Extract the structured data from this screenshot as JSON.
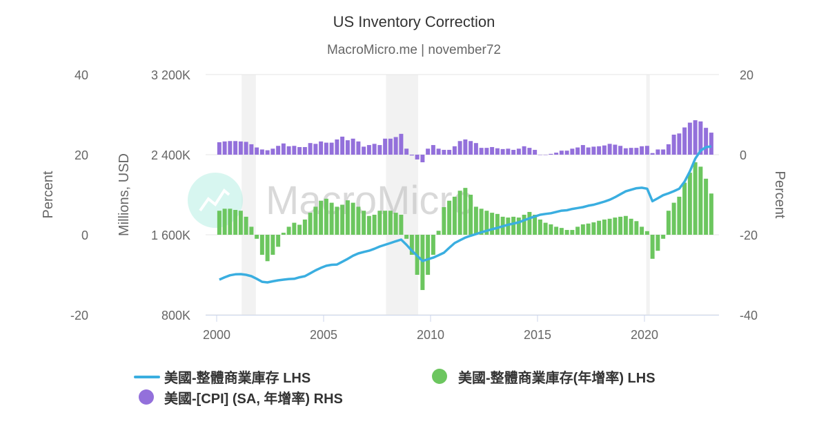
{
  "chart_data": {
    "type": "bar+line",
    "title": "US Inventory Correction",
    "subtitle": "MacroMicro.me | november72",
    "watermark": "MacroMicro",
    "x_ticks": [
      "2000",
      "2005",
      "2010",
      "2015",
      "2020"
    ],
    "y_axes": {
      "left_percent": {
        "label": "Percent",
        "ticks": [
          "40",
          "20",
          "0",
          "-20"
        ],
        "range": [
          -20,
          40
        ]
      },
      "left_usd": {
        "label": "Millions, USD",
        "ticks": [
          "3 200K",
          "2 400K",
          "1 600K",
          "800K"
        ],
        "range": [
          800,
          3200
        ]
      },
      "right_percent": {
        "label": "Percent",
        "ticks": [
          "20",
          "0",
          "-20",
          "-40"
        ],
        "range": [
          -40,
          20
        ]
      }
    },
    "grid": true,
    "legend_position": "bottom",
    "recessions": [
      [
        "2001-03",
        "2001-11"
      ],
      [
        "2007-12",
        "2009-06"
      ],
      [
        "2020-02",
        "2020-04"
      ]
    ],
    "dates": [
      "2000Q1",
      "2000Q2",
      "2000Q3",
      "2000Q4",
      "2001Q1",
      "2001Q2",
      "2001Q3",
      "2001Q4",
      "2002Q1",
      "2002Q2",
      "2002Q3",
      "2002Q4",
      "2003Q1",
      "2003Q2",
      "2003Q3",
      "2003Q4",
      "2004Q1",
      "2004Q2",
      "2004Q3",
      "2004Q4",
      "2005Q1",
      "2005Q2",
      "2005Q3",
      "2005Q4",
      "2006Q1",
      "2006Q2",
      "2006Q3",
      "2006Q4",
      "2007Q1",
      "2007Q2",
      "2007Q3",
      "2007Q4",
      "2008Q1",
      "2008Q2",
      "2008Q3",
      "2008Q4",
      "2009Q1",
      "2009Q2",
      "2009Q3",
      "2009Q4",
      "2010Q1",
      "2010Q2",
      "2010Q3",
      "2010Q4",
      "2011Q1",
      "2011Q2",
      "2011Q3",
      "2011Q4",
      "2012Q1",
      "2012Q2",
      "2012Q3",
      "2012Q4",
      "2013Q1",
      "2013Q2",
      "2013Q3",
      "2013Q4",
      "2014Q1",
      "2014Q2",
      "2014Q3",
      "2014Q4",
      "2015Q1",
      "2015Q2",
      "2015Q3",
      "2015Q4",
      "2016Q1",
      "2016Q2",
      "2016Q3",
      "2016Q4",
      "2017Q1",
      "2017Q2",
      "2017Q3",
      "2017Q4",
      "2018Q1",
      "2018Q2",
      "2018Q3",
      "2018Q4",
      "2019Q1",
      "2019Q2",
      "2019Q3",
      "2019Q4",
      "2020Q1",
      "2020Q2",
      "2020Q3",
      "2020Q4",
      "2021Q1",
      "2021Q2",
      "2021Q3",
      "2021Q4",
      "2022Q1",
      "2022Q2",
      "2022Q3",
      "2022Q4",
      "2023Q1"
    ],
    "series": [
      {
        "name": "美國-整體商業庫存 LHS",
        "type": "line",
        "axis": "left_usd",
        "color": "#3aaee0",
        "values": [
          1152,
          1175,
          1195,
          1205,
          1207,
          1200,
          1186,
          1160,
          1130,
          1124,
          1135,
          1145,
          1152,
          1158,
          1160,
          1175,
          1186,
          1215,
          1245,
          1270,
          1290,
          1300,
          1303,
          1330,
          1359,
          1390,
          1414,
          1428,
          1441,
          1460,
          1483,
          1500,
          1517,
          1535,
          1552,
          1500,
          1441,
          1390,
          1338,
          1355,
          1372,
          1395,
          1421,
          1470,
          1517,
          1545,
          1572,
          1590,
          1607,
          1625,
          1640,
          1655,
          1669,
          1685,
          1700,
          1712,
          1724,
          1745,
          1765,
          1782,
          1800,
          1808,
          1815,
          1828,
          1841,
          1845,
          1858,
          1867,
          1876,
          1890,
          1900,
          1915,
          1931,
          1950,
          1975,
          2005,
          2034,
          2050,
          2065,
          2070,
          2060,
          1935,
          1965,
          1995,
          2014,
          2035,
          2060,
          2130,
          2234,
          2360,
          2441,
          2475,
          2483
        ]
      },
      {
        "name": "美國-整體商業庫存(年增率) LHS",
        "type": "bar",
        "axis": "left_percent",
        "color": "#6cc65f",
        "values": [
          6,
          6.5,
          6.5,
          6.2,
          6,
          4.5,
          2,
          -1,
          -5,
          -6.6,
          -5,
          -3,
          0.5,
          2,
          3,
          2.5,
          3.8,
          5.5,
          7,
          8.5,
          9,
          8,
          7,
          7.5,
          8.6,
          8,
          7,
          6,
          4.7,
          5,
          6,
          6,
          6,
          5.5,
          5,
          -1,
          -5,
          -10,
          -13.8,
          -10,
          -5,
          1,
          6.9,
          8.5,
          9.5,
          11,
          11.7,
          10,
          7,
          6.5,
          6,
          5.5,
          5.2,
          4.5,
          4.3,
          4.5,
          4.3,
          5,
          5.7,
          5,
          3.8,
          3,
          2.6,
          2,
          1.7,
          1.2,
          1.2,
          2,
          2.6,
          2.8,
          3.1,
          3.5,
          3.8,
          4,
          4.3,
          4.5,
          4.7,
          4,
          3.4,
          2,
          0.9,
          -6,
          -4,
          -1,
          6,
          8,
          9.5,
          13,
          15.5,
          18.1,
          17,
          14,
          10.3
        ]
      },
      {
        "name": "美國-[CPI] (SA, 年增率) RHS",
        "type": "bar",
        "axis": "right_percent",
        "color": "#9370db",
        "values": [
          3.1,
          3.3,
          3.4,
          3.4,
          3.3,
          3.2,
          2.6,
          1.8,
          1.3,
          1.1,
          1.5,
          2.2,
          2.8,
          2.1,
          2.2,
          1.9,
          1.9,
          2.9,
          2.7,
          3.3,
          3.0,
          3.0,
          3.8,
          4.5,
          3.6,
          4.0,
          3.3,
          2.0,
          2.4,
          2.7,
          2.4,
          4.0,
          4.0,
          4.4,
          5.2,
          1.5,
          -0.2,
          -1.2,
          -1.9,
          1.5,
          2.4,
          1.5,
          1.2,
          1.2,
          2.1,
          3.4,
          3.8,
          3.4,
          2.9,
          1.7,
          1.7,
          1.9,
          1.6,
          1.4,
          1.5,
          1.2,
          1.5,
          2.1,
          1.7,
          1.2,
          0,
          0,
          0.2,
          0.5,
          1.0,
          1.0,
          1.5,
          1.8,
          2.4,
          1.8,
          2.0,
          2.1,
          2.3,
          2.7,
          2.5,
          2.2,
          1.6,
          1.7,
          1.7,
          2.1,
          2.2,
          0.4,
          1.3,
          1.3,
          2.6,
          5.0,
          5.3,
          6.8,
          8.0,
          8.6,
          8.3,
          6.7,
          5.5
        ]
      }
    ]
  }
}
